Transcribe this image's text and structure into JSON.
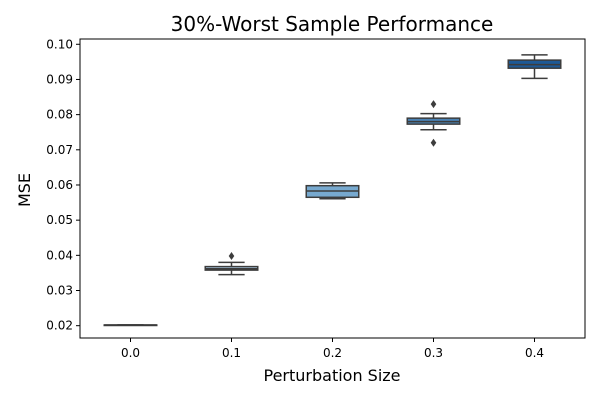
{
  "chart_data": {
    "type": "box",
    "title": "30%-Worst Sample Performance",
    "xlabel": "Perturbation Size",
    "ylabel": "MSE",
    "ylim": [
      0.0165,
      0.1015
    ],
    "yticks": [
      "0.02",
      "0.03",
      "0.04",
      "0.05",
      "0.06",
      "0.07",
      "0.08",
      "0.09",
      "0.10"
    ],
    "categories": [
      "0.0",
      "0.1",
      "0.2",
      "0.3",
      "0.4"
    ],
    "boxes": [
      {
        "category": "0.0",
        "whisker_low": 0.0202,
        "q1": 0.0202,
        "median": 0.0202,
        "q3": 0.0202,
        "whisker_high": 0.0202,
        "outliers": [],
        "color": "#d4dde6"
      },
      {
        "category": "0.1",
        "whisker_low": 0.0345,
        "q1": 0.0358,
        "median": 0.0362,
        "q3": 0.0368,
        "whisker_high": 0.038,
        "outliers": [
          0.0398
        ],
        "color": "#a9c7e0"
      },
      {
        "category": "0.2",
        "whisker_low": 0.0561,
        "q1": 0.0565,
        "median": 0.0583,
        "q3": 0.0598,
        "whisker_high": 0.0606,
        "outliers": [],
        "color": "#77a9cf"
      },
      {
        "category": "0.3",
        "whisker_low": 0.0757,
        "q1": 0.0773,
        "median": 0.078,
        "q3": 0.079,
        "whisker_high": 0.0803,
        "outliers": [
          0.072,
          0.083
        ],
        "color": "#4a82b4"
      },
      {
        "category": "0.4",
        "whisker_low": 0.0903,
        "q1": 0.0932,
        "median": 0.0942,
        "q3": 0.0955,
        "whisker_high": 0.097,
        "outliers": [],
        "color": "#1f5a96"
      }
    ],
    "grid": false,
    "legend": "none"
  }
}
